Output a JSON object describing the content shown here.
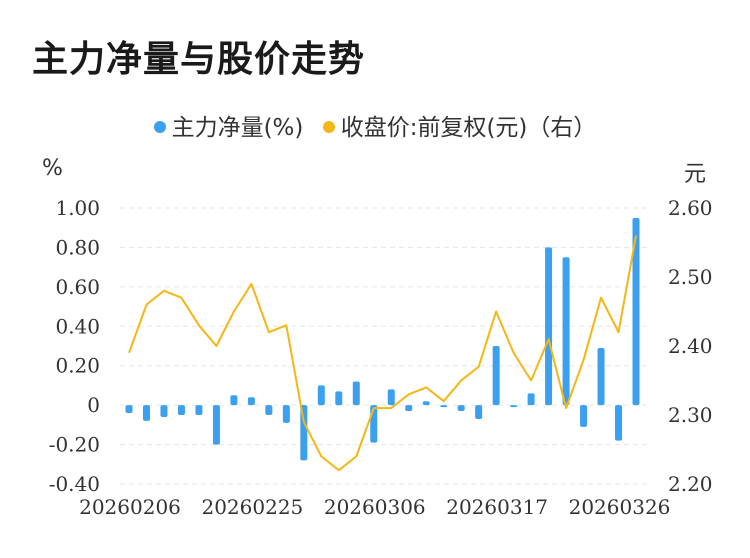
{
  "title": "主力净量与股价走势",
  "legend": [
    {
      "label": "主力净量(%)",
      "color": "#3aa0ef"
    },
    {
      "label": "收盘价:前复权(元)（右）",
      "color": "#f5b616"
    }
  ],
  "units": {
    "left": "%",
    "right": "元"
  },
  "chart_data": {
    "type": "bar+line",
    "title": "主力净量与股价走势",
    "x_tick_labels": [
      "20260206",
      "20260225",
      "20260306",
      "20260317",
      "20260326"
    ],
    "x_tick_indices": [
      0,
      7,
      14,
      21,
      28
    ],
    "left_axis": {
      "unit": "%",
      "range": [
        -0.4,
        1.0
      ],
      "ticks": [
        -0.4,
        -0.2,
        0,
        0.2,
        0.4,
        0.6,
        0.8,
        1.0
      ],
      "tick_labels": [
        "-0.40",
        "-0.20",
        "0",
        "0.20",
        "0.40",
        "0.60",
        "0.80",
        "1.00"
      ]
    },
    "right_axis": {
      "unit": "元",
      "range": [
        2.2,
        2.6
      ],
      "ticks": [
        2.2,
        2.3,
        2.4,
        2.5,
        2.6
      ],
      "tick_labels": [
        "2.20",
        "2.30",
        "2.40",
        "2.50",
        "2.60"
      ]
    },
    "grid": true,
    "legend_position": "top-center",
    "series": [
      {
        "name": "主力净量(%)",
        "type": "bar",
        "axis": "left",
        "color": "#3aa0ef",
        "values": [
          -0.04,
          -0.08,
          -0.06,
          -0.05,
          -0.05,
          -0.2,
          0.05,
          0.04,
          -0.05,
          -0.09,
          -0.28,
          0.1,
          0.07,
          0.12,
          -0.19,
          0.08,
          -0.03,
          0.02,
          -0.01,
          -0.03,
          -0.07,
          0.3,
          -0.01,
          0.06,
          0.8,
          0.75,
          -0.11,
          0.29,
          -0.18,
          0.95
        ]
      },
      {
        "name": "收盘价:前复权(元)（右）",
        "type": "line",
        "axis": "right",
        "color": "#f5b616",
        "values": [
          2.39,
          2.46,
          2.48,
          2.47,
          2.43,
          2.4,
          2.45,
          2.49,
          2.42,
          2.43,
          2.29,
          2.24,
          2.22,
          2.24,
          2.31,
          2.31,
          2.33,
          2.34,
          2.32,
          2.35,
          2.37,
          2.45,
          2.39,
          2.35,
          2.41,
          2.31,
          2.38,
          2.47,
          2.42,
          2.56
        ]
      }
    ]
  }
}
